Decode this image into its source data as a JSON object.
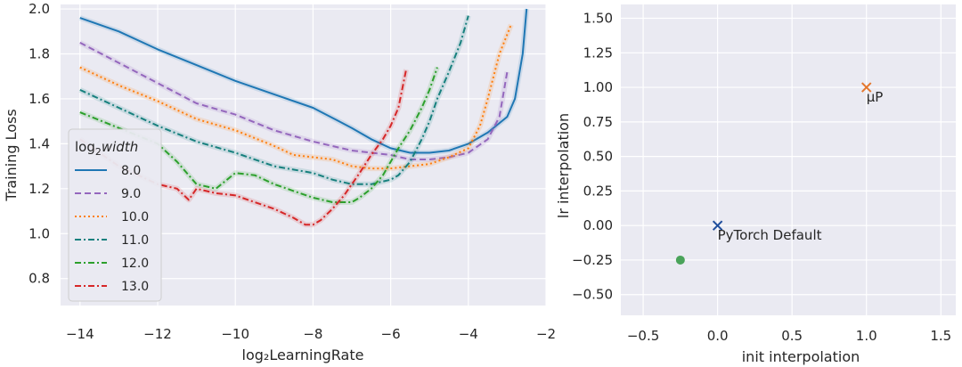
{
  "chart_data": [
    {
      "type": "line",
      "xlabel": "log₂LearningRate",
      "ylabel": "Training Loss",
      "xlim": [
        -14.5,
        -2
      ],
      "ylim": [
        0.68,
        2.02
      ],
      "xticks": [
        "−14",
        "−12",
        "−10",
        "−8",
        "−6",
        "−4",
        "−2"
      ],
      "yticks": [
        "0.8",
        "1.0",
        "1.2",
        "1.4",
        "1.6",
        "1.8",
        "2.0"
      ],
      "grid": true,
      "legend": {
        "title_prefix": "log",
        "title_sub": "2",
        "title_italic": "width",
        "placement": "center-left"
      },
      "series": [
        {
          "name": "8.0",
          "color": "#1f77b4",
          "dash": "solid",
          "x": [
            -14,
            -13,
            -12,
            -11,
            -10,
            -9,
            -8,
            -7,
            -6.5,
            -6,
            -5.5,
            -5,
            -4.5,
            -4,
            -3.5,
            -3,
            -2.8,
            -2.6,
            -2.5
          ],
          "y": [
            1.96,
            1.9,
            1.82,
            1.75,
            1.68,
            1.62,
            1.56,
            1.47,
            1.42,
            1.38,
            1.36,
            1.36,
            1.37,
            1.4,
            1.45,
            1.52,
            1.6,
            1.8,
            2.0
          ]
        },
        {
          "name": "9.0",
          "color": "#9467bd",
          "dash": "dashed",
          "x": [
            -14,
            -13,
            -12,
            -11,
            -10,
            -9,
            -8,
            -7,
            -6.5,
            -6,
            -5.5,
            -5,
            -4.5,
            -4,
            -3.5,
            -3.2,
            -3
          ],
          "y": [
            1.85,
            1.76,
            1.67,
            1.58,
            1.53,
            1.46,
            1.41,
            1.37,
            1.36,
            1.35,
            1.33,
            1.33,
            1.34,
            1.36,
            1.42,
            1.52,
            1.72
          ]
        },
        {
          "name": "10.0",
          "color": "#ff7f0e",
          "dash": "dotted",
          "x": [
            -14,
            -13,
            -12,
            -11,
            -10,
            -9,
            -8.5,
            -8,
            -7.5,
            -7,
            -6.5,
            -6,
            -5.5,
            -5,
            -4.5,
            -4,
            -3.7,
            -3.5,
            -3.2,
            -2.9
          ],
          "y": [
            1.74,
            1.66,
            1.59,
            1.51,
            1.46,
            1.39,
            1.35,
            1.34,
            1.33,
            1.3,
            1.29,
            1.29,
            1.3,
            1.31,
            1.34,
            1.38,
            1.48,
            1.6,
            1.8,
            1.93
          ]
        },
        {
          "name": "11.0",
          "color": "#17807e",
          "dash": "dashdot",
          "x": [
            -14,
            -13,
            -12,
            -11,
            -10,
            -9,
            -8,
            -7.5,
            -7,
            -6.5,
            -6,
            -5.8,
            -5.5,
            -5.2,
            -5,
            -4.8,
            -4.5,
            -4.2,
            -4
          ],
          "y": [
            1.64,
            1.56,
            1.48,
            1.41,
            1.36,
            1.3,
            1.27,
            1.24,
            1.22,
            1.22,
            1.24,
            1.26,
            1.32,
            1.42,
            1.5,
            1.6,
            1.72,
            1.85,
            1.97
          ]
        },
        {
          "name": "12.0",
          "color": "#2ca02c",
          "dash": "dashdot",
          "x": [
            -14,
            -13,
            -12,
            -11.5,
            -11,
            -10.5,
            -10,
            -9.5,
            -9,
            -8.5,
            -8,
            -7.5,
            -7,
            -6.8,
            -6.5,
            -6.2,
            -6,
            -5.8,
            -5.5,
            -5.2,
            -5,
            -4.8
          ],
          "y": [
            1.54,
            1.47,
            1.4,
            1.32,
            1.22,
            1.2,
            1.27,
            1.26,
            1.22,
            1.19,
            1.16,
            1.14,
            1.14,
            1.16,
            1.2,
            1.26,
            1.32,
            1.38,
            1.46,
            1.56,
            1.64,
            1.74
          ]
        },
        {
          "name": "13.0",
          "color": "#d62728",
          "dash": "dashdot",
          "x": [
            -14,
            -13.5,
            -13,
            -12.5,
            -12,
            -11.5,
            -11.2,
            -11,
            -10.5,
            -10,
            -9.5,
            -9,
            -8.5,
            -8.2,
            -8,
            -7.8,
            -7.5,
            -7.2,
            -7,
            -6.8,
            -6.5,
            -6.2,
            -6,
            -5.8,
            -5.6
          ],
          "y": [
            1.42,
            1.36,
            1.3,
            1.26,
            1.22,
            1.2,
            1.15,
            1.2,
            1.18,
            1.17,
            1.14,
            1.11,
            1.07,
            1.04,
            1.04,
            1.06,
            1.11,
            1.17,
            1.22,
            1.27,
            1.35,
            1.42,
            1.48,
            1.56,
            1.73
          ]
        }
      ]
    },
    {
      "type": "scatter",
      "xlabel": "init interpolation",
      "ylabel": "lr interpolation",
      "xlim": [
        -0.65,
        1.6
      ],
      "ylim": [
        -0.65,
        1.6
      ],
      "xticks": [
        "−0.5",
        "0.0",
        "0.5",
        "1.0",
        "1.5"
      ],
      "yticks": [
        "−0.50",
        "−0.25",
        "0.00",
        "0.25",
        "0.50",
        "0.75",
        "1.00",
        "1.25",
        "1.50"
      ],
      "grid": true,
      "points": [
        {
          "x": 0.0,
          "y": 0.0,
          "marker": "x",
          "color": "#1f4e9c",
          "label": "PyTorch Default"
        },
        {
          "x": 1.0,
          "y": 1.0,
          "marker": "x",
          "color": "#e4762c",
          "label": "μP"
        },
        {
          "x": -0.25,
          "y": -0.25,
          "marker": "o",
          "color": "#4aa35a",
          "label": ""
        }
      ]
    }
  ]
}
